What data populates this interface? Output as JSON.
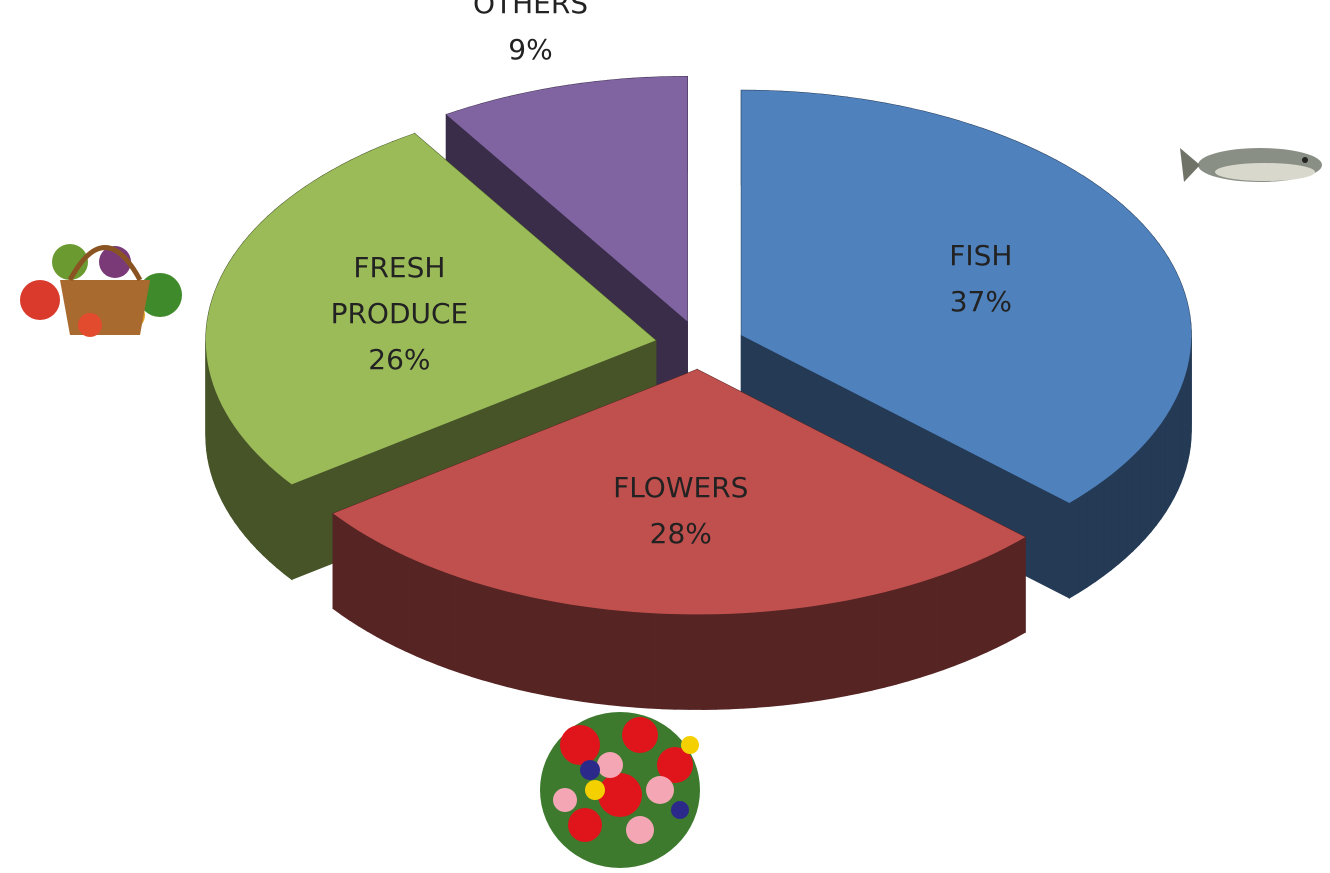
{
  "chart_data": {
    "type": "pie",
    "categories": [
      "FISH",
      "FLOWERS",
      "FRESH PRODUCE",
      "OTHERS"
    ],
    "values": [
      37,
      28,
      26,
      9
    ],
    "value_labels": [
      "37%",
      "28%",
      "26%",
      "9%"
    ],
    "colors": [
      "#4f81bd",
      "#c0504d",
      "#9bbb59",
      "#8064a2"
    ]
  }
}
